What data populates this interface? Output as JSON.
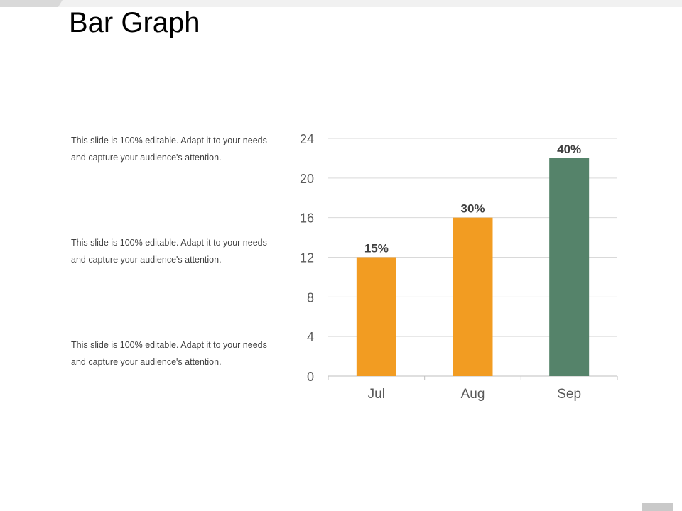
{
  "slide": {
    "title": "Bar Graph",
    "blurbs": [
      "This slide is 100% editable. Adapt it to your needs and capture your audience's attention.",
      "This slide is 100% editable. Adapt it to your needs and capture your audience's attention.",
      "This slide is 100% editable. Adapt it to your needs and capture your audience's attention."
    ]
  },
  "chart_data": {
    "type": "bar",
    "categories": [
      "Jul",
      "Aug",
      "Sep"
    ],
    "values": [
      12,
      16,
      22
    ],
    "data_labels": [
      "15%",
      "30%",
      "40%"
    ],
    "colors": [
      "#F29C22",
      "#F29C22",
      "#55836A"
    ],
    "yticks": [
      0,
      4,
      8,
      12,
      16,
      20,
      24
    ],
    "ylim": [
      0,
      24
    ],
    "grid": true,
    "legend": "none",
    "title": "",
    "xlabel": "",
    "ylabel": ""
  }
}
